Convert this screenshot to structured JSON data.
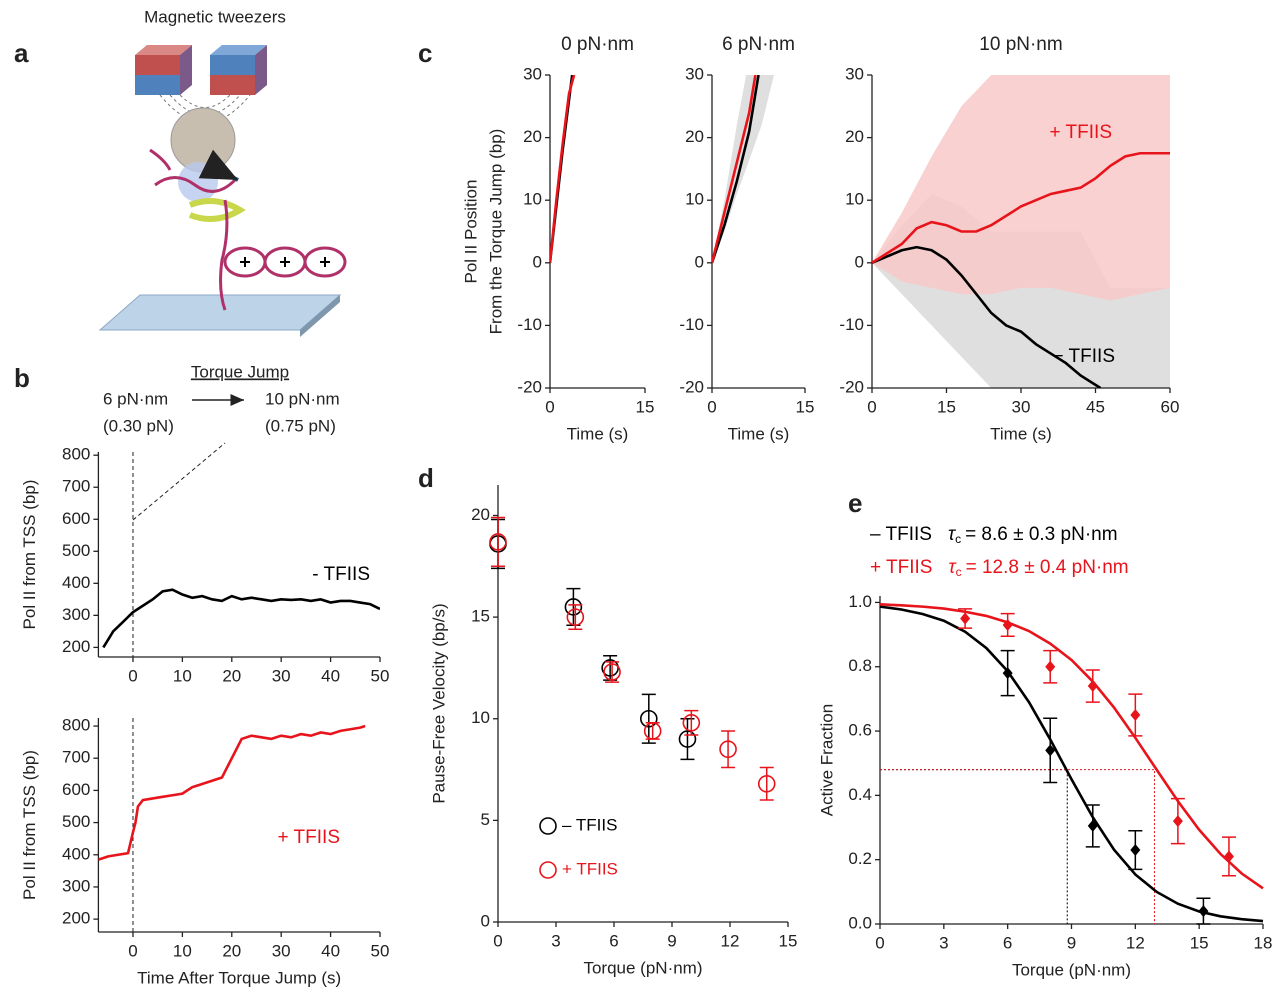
{
  "panel_labels": [
    "a",
    "b",
    "c",
    "d",
    "e"
  ],
  "diagram": {
    "title": "Magnetic tweezers"
  },
  "torque_jump": {
    "title": "Torque Jump",
    "from": "6 pN·nm",
    "from_force": "(0.30 pN)",
    "to": "10 pN·nm",
    "to_force": "(0.75 pN)"
  },
  "chart_data": [
    {
      "type": "line",
      "ylabel": "Pol II from TSS (bp)",
      "xlim": [
        -7,
        50
      ],
      "xticks": [
        0,
        10,
        20,
        30,
        40,
        50
      ],
      "ylim": [
        170,
        810
      ],
      "yticks": [
        200,
        300,
        400,
        500,
        600,
        700,
        800
      ],
      "vline": 0,
      "series": [
        {
          "name": "- TFIIS",
          "color": "#000000",
          "x": [
            -6,
            -4,
            -2,
            0,
            2,
            4,
            6,
            8,
            10,
            12,
            14,
            16,
            18,
            20,
            22,
            24,
            26,
            28,
            30,
            32,
            34,
            36,
            38,
            40,
            42,
            44,
            46,
            48,
            50
          ],
          "values": [
            200,
            250,
            280,
            310,
            330,
            350,
            375,
            380,
            365,
            355,
            360,
            350,
            345,
            360,
            350,
            355,
            350,
            345,
            350,
            348,
            350,
            345,
            350,
            340,
            345,
            345,
            340,
            335,
            320
          ]
        }
      ]
    },
    {
      "type": "line",
      "xlabel": "Time After Torque Jump (s)",
      "ylabel": "Pol II from TSS (bp)",
      "xlim": [
        -7,
        50
      ],
      "xticks": [
        0,
        10,
        20,
        30,
        40,
        50
      ],
      "ylim": [
        160,
        825
      ],
      "yticks": [
        200,
        300,
        400,
        500,
        600,
        700,
        800
      ],
      "vline": 0,
      "series": [
        {
          "name": "+ TFIIS",
          "color": "#e8141b",
          "x": [
            -7,
            -5,
            -3,
            -1,
            0,
            0.5,
            1,
            2,
            4,
            6,
            8,
            10,
            12,
            14,
            16,
            18,
            20,
            22,
            24,
            26,
            28,
            30,
            32,
            34,
            36,
            38,
            40,
            42,
            44,
            46,
            47
          ],
          "values": [
            385,
            395,
            400,
            405,
            470,
            500,
            550,
            570,
            575,
            580,
            585,
            590,
            610,
            620,
            630,
            640,
            700,
            760,
            770,
            765,
            760,
            770,
            765,
            775,
            770,
            780,
            775,
            785,
            790,
            795,
            800
          ]
        }
      ]
    },
    {
      "type": "line",
      "title": "0 pN·nm",
      "xlabel": "Time (s)",
      "ylabel": [
        "Pol II Position",
        "From the Torque Jump (bp)"
      ],
      "xlim": [
        0,
        15
      ],
      "xticks": [
        0,
        15
      ],
      "ylim": [
        -20,
        30
      ],
      "yticks": [
        -20,
        -10,
        0,
        10,
        20,
        30
      ],
      "series": [
        {
          "color": "#000000",
          "x": [
            0,
            1,
            2,
            3,
            3.5
          ],
          "values": [
            0,
            9,
            18,
            26,
            30
          ]
        },
        {
          "color": "#e8141b",
          "x": [
            0,
            1,
            2,
            3,
            3.8
          ],
          "values": [
            0,
            10,
            19,
            27,
            30
          ]
        }
      ]
    },
    {
      "type": "line",
      "title": "6 pN·nm",
      "xlabel": "Time (s)",
      "xlim": [
        0,
        15
      ],
      "xticks": [
        0,
        15
      ],
      "ylim": [
        -20,
        30
      ],
      "yticks": [
        -20,
        -10,
        0,
        10,
        20,
        30
      ],
      "bands": [
        {
          "color": "#d9d9d9",
          "x": [
            0,
            2,
            4,
            5.5,
            8,
            10
          ],
          "lower": [
            0,
            5,
            11,
            15,
            22,
            30
          ],
          "upper": [
            0,
            10,
            22,
            30,
            30,
            30
          ]
        }
      ],
      "series": [
        {
          "color": "#000000",
          "x": [
            0,
            2,
            4,
            6,
            7.5
          ],
          "values": [
            0,
            6,
            13,
            21,
            30
          ]
        },
        {
          "color": "#e8141b",
          "x": [
            0,
            2,
            4,
            6,
            7
          ],
          "values": [
            0,
            8,
            16,
            24,
            30
          ]
        }
      ]
    },
    {
      "type": "line",
      "title": "10 pN·nm",
      "xlabel": "Time (s)",
      "xlim": [
        0,
        60
      ],
      "xticks": [
        0,
        15,
        30,
        45,
        60
      ],
      "ylim": [
        -20,
        30
      ],
      "yticks": [
        -20,
        -10,
        0,
        10,
        20,
        30
      ],
      "bands": [
        {
          "color": "#d9d9d9",
          "x": [
            0,
            6,
            12,
            18,
            24,
            30,
            36,
            42,
            48,
            54,
            60
          ],
          "lower": [
            0,
            -5,
            -10,
            -15,
            -20,
            -20,
            -20,
            -20,
            -20,
            -20,
            -20
          ],
          "upper": [
            0,
            6,
            11,
            9,
            5,
            5,
            5,
            5,
            -4,
            -4,
            -4
          ]
        },
        {
          "color": "#f9c9c9",
          "x": [
            0,
            6,
            12,
            18,
            24,
            30,
            36,
            42,
            48,
            54,
            60
          ],
          "lower": [
            0,
            -3,
            -4,
            -5,
            -5,
            -4,
            -4,
            -5,
            -6,
            -5,
            -4
          ],
          "upper": [
            0,
            8,
            17,
            25,
            30,
            30,
            30,
            30,
            30,
            30,
            30
          ]
        }
      ],
      "series": [
        {
          "name": "− TFIIS",
          "color": "#000000",
          "x": [
            0,
            3,
            6,
            9,
            12,
            15,
            18,
            21,
            24,
            27,
            30,
            33,
            36,
            39,
            42,
            45,
            46
          ],
          "values": [
            0,
            1,
            2,
            2.5,
            2,
            0.5,
            -2,
            -5,
            -8,
            -10,
            -11,
            -13,
            -14.5,
            -16,
            -18,
            -19.5,
            -20
          ]
        },
        {
          "name": "+ TFIIS",
          "color": "#e8141b",
          "x": [
            0,
            3,
            6,
            9,
            12,
            15,
            18,
            21,
            24,
            27,
            30,
            33,
            36,
            39,
            42,
            45,
            48,
            51,
            54,
            57,
            60
          ],
          "values": [
            0,
            1.5,
            3,
            5.5,
            6.5,
            6,
            5,
            5,
            6,
            7.5,
            9,
            10,
            11,
            11.5,
            12,
            13.5,
            15.5,
            17,
            17.5,
            17.5,
            17.5
          ]
        }
      ]
    },
    {
      "type": "scatter",
      "xlabel": "Torque (pN·nm)",
      "ylabel": "Pause-Free Velocity (bp/s)",
      "xlim": [
        0,
        15
      ],
      "xticks": [
        0,
        3,
        6,
        9,
        12,
        15
      ],
      "ylim": [
        0,
        21.5
      ],
      "yticks": [
        0,
        5,
        10,
        15,
        20
      ],
      "legend": "lower left",
      "marker": "circle-open",
      "series": [
        {
          "name": "– TFIIS",
          "color": "#000000",
          "x": [
            0,
            3.9,
            5.8,
            7.8,
            9.8
          ],
          "values": [
            18.6,
            15.5,
            12.5,
            10.0,
            9.0
          ],
          "errors": [
            1.2,
            0.9,
            0.6,
            1.2,
            1.0
          ]
        },
        {
          "name": "+ TFIIS",
          "color": "#e8141b",
          "x": [
            0,
            4,
            5.9,
            8,
            10,
            11.9,
            13.9
          ],
          "values": [
            18.7,
            15.0,
            12.3,
            9.4,
            9.8,
            8.5,
            6.8
          ],
          "errors": [
            1.2,
            0.6,
            0.5,
            0.4,
            0.6,
            0.9,
            0.8
          ]
        }
      ]
    },
    {
      "type": "scatter",
      "xlabel": "Torque (pN·nm)",
      "ylabel": "Active Fraction",
      "xlim": [
        0,
        18
      ],
      "xticks": [
        0,
        3,
        6,
        9,
        12,
        15,
        18
      ],
      "ylim": [
        0,
        1.02
      ],
      "yticks": [
        {
          "value": 0,
          "label": "0.0"
        },
        0.2,
        0.4,
        0.6,
        0.8,
        {
          "value": 1,
          "label": "1.0"
        }
      ],
      "marker": "diamond",
      "series": [
        {
          "name": "– TFIIS",
          "color": "#000000",
          "tau": {
            "symbol": "τ",
            "sub": "c",
            "text": "=  8.6 ± 0.3 pN·nm"
          },
          "x": [
            6,
            8,
            10,
            12,
            15.2
          ],
          "values": [
            0.78,
            0.54,
            0.305,
            0.23,
            0.04
          ],
          "errors": [
            0.07,
            0.1,
            0.065,
            0.06,
            0.04
          ]
        },
        {
          "name": "+ TFIIS",
          "color": "#e8141b",
          "tau": {
            "symbol": "τ",
            "sub": "c",
            "text": "= 12.8 ± 0.4 pN·nm"
          },
          "x": [
            4,
            6,
            8,
            10,
            12,
            14,
            16.4
          ],
          "values": [
            0.95,
            0.93,
            0.8,
            0.74,
            0.65,
            0.32,
            0.21
          ],
          "errors": [
            0.03,
            0.035,
            0.05,
            0.05,
            0.065,
            0.07,
            0.06
          ]
        }
      ],
      "fits": [
        {
          "color": "#000000",
          "x": [
            0,
            1,
            2,
            3,
            4,
            5,
            6,
            7,
            8,
            9,
            10,
            11,
            12,
            13,
            14,
            15,
            16,
            17,
            18
          ],
          "values": [
            0.987,
            0.978,
            0.964,
            0.943,
            0.909,
            0.858,
            0.786,
            0.69,
            0.574,
            0.45,
            0.332,
            0.231,
            0.154,
            0.1,
            0.063,
            0.039,
            0.024,
            0.015,
            0.009
          ]
        },
        {
          "color": "#e8141b",
          "x": [
            0,
            1,
            2,
            3,
            4,
            5,
            6,
            7,
            8,
            9,
            10,
            11,
            12,
            13,
            14,
            15,
            16,
            17,
            18
          ],
          "values": [
            0.994,
            0.991,
            0.987,
            0.981,
            0.971,
            0.958,
            0.938,
            0.911,
            0.872,
            0.821,
            0.754,
            0.673,
            0.579,
            0.48,
            0.382,
            0.293,
            0.218,
            0.157,
            0.111
          ]
        }
      ],
      "guides": [
        {
          "color": "#000000",
          "x": 8.8,
          "y": 0.48
        },
        {
          "color": "#e8141b",
          "x": 12.9,
          "y": 0.48
        }
      ]
    }
  ]
}
